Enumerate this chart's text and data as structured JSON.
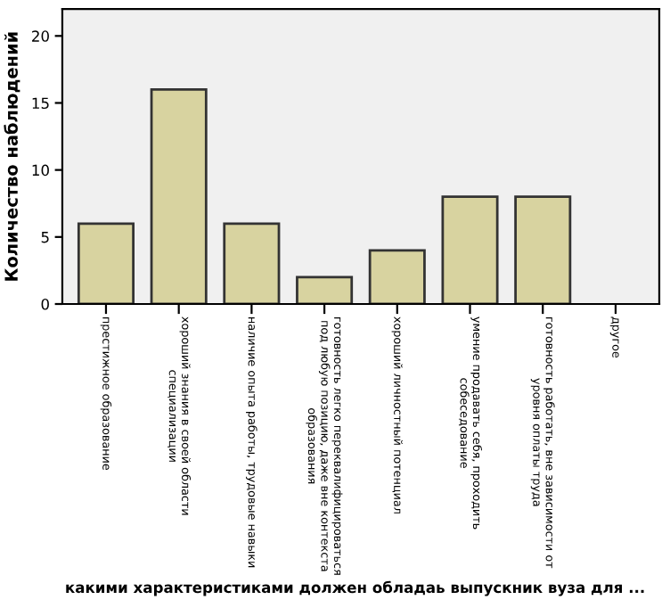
{
  "chart_data": {
    "type": "bar",
    "xlabel": "какими характеристиками должен обладаь выпускник вуза для ...",
    "ylabel": "Количество наблюдений",
    "categories": [
      "престижное образование",
      "хороший знания в своей области\nспециализации",
      "наличие опыта работы, трудовые навыки",
      "готовность легко переквалифицироваться\nпод любую позицию, даже вне контекста\nобразования",
      "хороший личностный потенциал",
      "умение продавать себя, проходить\nсобеседование",
      "готовность работать, вне зависимости от\nуровня оплаты труда",
      "другое"
    ],
    "values": [
      6,
      16,
      6,
      2,
      4,
      8,
      8,
      0
    ],
    "color": "#d8d3a0",
    "ylim": [
      0,
      22
    ],
    "yticks": [
      0,
      5,
      10,
      15,
      20
    ],
    "grid": false
  }
}
